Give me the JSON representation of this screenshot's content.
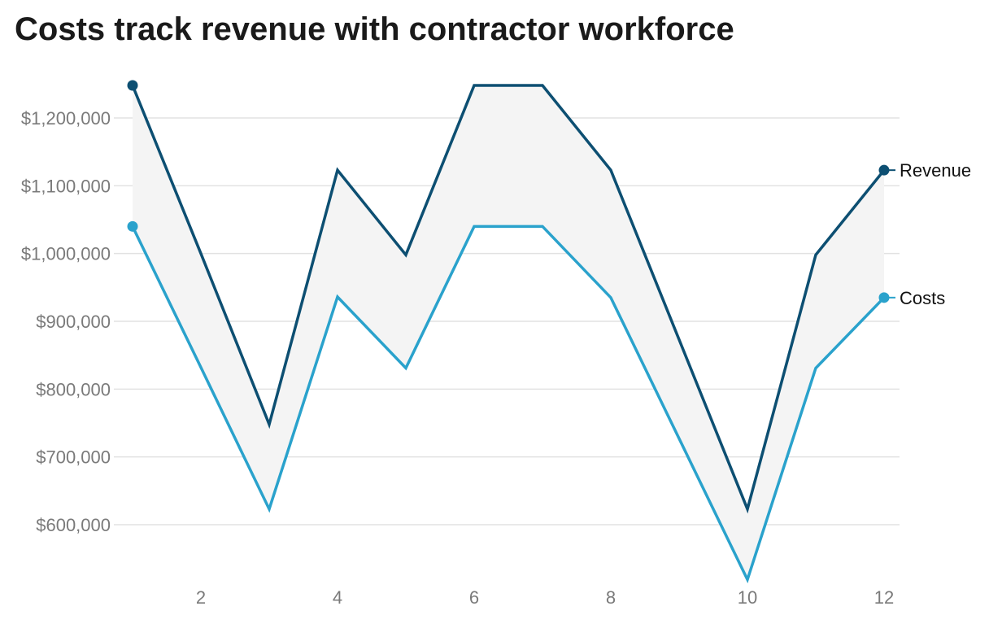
{
  "chart_data": {
    "type": "line",
    "title": "Costs track revenue with contractor workforce",
    "xlabel": "",
    "ylabel": "",
    "x": [
      1,
      2,
      3,
      4,
      5,
      6,
      7,
      8,
      9,
      10,
      11,
      12
    ],
    "x_ticks": [
      2,
      4,
      6,
      8,
      10,
      12
    ],
    "xlim": [
      1,
      12
    ],
    "y_ticks": [
      "$600,000",
      "$700,000",
      "$800,000",
      "$900,000",
      "$1,000,000",
      "$1,100,000",
      "$1,200,000"
    ],
    "y_tick_values": [
      600000,
      700000,
      800000,
      900000,
      1000000,
      1100000,
      1200000
    ],
    "ylim": [
      520000,
      1250000
    ],
    "grid": "horizontal",
    "fill_between_series": true,
    "legend": "direct labels at right end",
    "series": [
      {
        "name": "Revenue",
        "color": "#0d4f72",
        "values": [
          1248000,
          1000000,
          748000,
          1123000,
          998000,
          1248000,
          1248000,
          1123000,
          873000,
          623000,
          998000,
          1123000
        ]
      },
      {
        "name": "Costs",
        "color": "#2aa2cc",
        "values": [
          1040000,
          832000,
          623000,
          936000,
          831000,
          1040000,
          1040000,
          935000,
          727000,
          519000,
          831000,
          935000
        ]
      }
    ]
  }
}
